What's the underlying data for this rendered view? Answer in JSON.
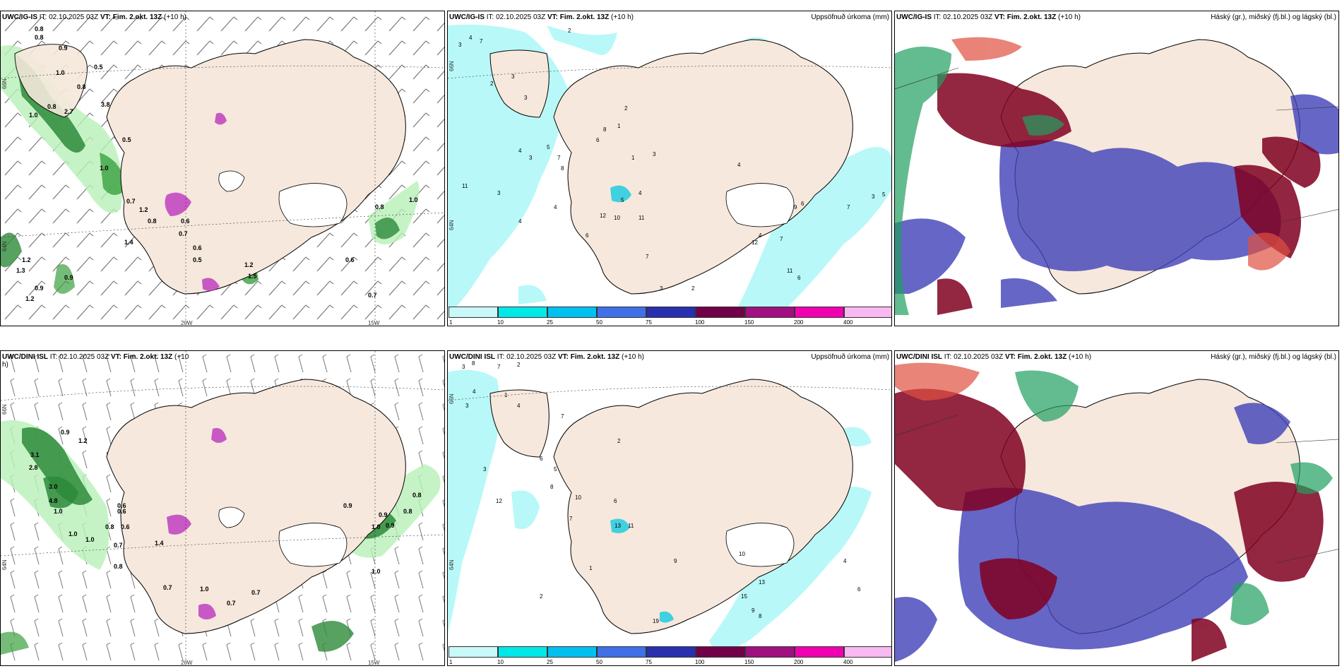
{
  "panels": {
    "tl": {
      "source": "UWC/IG-IS",
      "it": "IT: 02.10.2025 03Z",
      "vt": "VT: Fim. 2.okt. 13Z",
      "lead": "(+10 h)",
      "right": ""
    },
    "tm": {
      "source": "UWC/IG-IS",
      "it": "IT: 02.10.2025 03Z",
      "vt": "VT: Fim. 2.okt. 13Z",
      "lead": "(+10 h)",
      "right": "Uppsöfnuð úrkoma (mm)"
    },
    "tr": {
      "source": "UWC/IG-IS",
      "it": "IT: 02.10.2025 03Z",
      "vt": "VT: Fim. 2.okt. 13Z",
      "lead": "(+10 h)",
      "right": "Háský (gr.), miðský (fj.bl.) og lágský (bl.)"
    },
    "bl": {
      "source": "UWC/DINI ISL",
      "it": "IT: 02.10.2025 03Z",
      "vt": "VT: Fim. 2.okt. 13Z",
      "lead": "(+10",
      "lead2": "h)",
      "right": ""
    },
    "bm": {
      "source": "UWC/DINI ISL",
      "it": "IT: 02.10.2025 03Z",
      "vt": "VT: Fim. 2.okt. 13Z",
      "lead": "(+10 h)",
      "right": "Uppsöfnuð úrkoma (mm)"
    },
    "br": {
      "source": "UWC/DINI ISL",
      "it": "IT: 02.10.2025 03Z",
      "vt": "VT: Fim. 2.okt. 13Z",
      "lead": "(+10 h)",
      "right": "Háský (gr.), miðský (fj.bl.) og lágský (bl.)"
    }
  },
  "axis_labels": {
    "lon_20w": "20W",
    "lon_15w": "15W",
    "lat_66n": "66N",
    "lat_64n": "64N"
  },
  "colorbar": {
    "labels": [
      "1",
      "10",
      "25",
      "50",
      "75",
      "100",
      "150",
      "200",
      "400"
    ],
    "colors": [
      "#c8f8f8",
      "#00e8e8",
      "#00c0f0",
      "#4070e8",
      "#2830b0",
      "#700048",
      "#a01080",
      "#f000b0",
      "#f8b8f0"
    ]
  },
  "tl_values": [
    "0.8",
    "0.8",
    "0.9",
    "1.0",
    "0.5",
    "0.8",
    "1.0",
    "0.8",
    "2.7",
    "3.8",
    "0.5",
    "1.0",
    "0.7",
    "1.2",
    "0.8",
    "0.6",
    "0.7",
    "0.6",
    "0.5",
    "1.4",
    "1.2",
    "1.3",
    "0.9",
    "1.2",
    "0.9",
    "1.0",
    "0.8",
    "0.6",
    "0.7",
    "1.2",
    "1.5"
  ],
  "bl_values": [
    "0.9",
    "1.2",
    "3.1",
    "2.8",
    "3.0",
    "4.8",
    "1.0",
    "0.6",
    "0.6",
    "1.0",
    "0.8",
    "0.6",
    "1.4",
    "0.7",
    "1.0",
    "0.7",
    "0.8",
    "1.0",
    "0.7",
    "0.9",
    "1.0",
    "0.8",
    "0.8",
    "0.9",
    "0.9",
    "0.7",
    "1.0"
  ],
  "tm_values": [
    "3",
    "4",
    "7",
    "2",
    "3",
    "3",
    "4",
    "3",
    "5",
    "7",
    "8",
    "11",
    "3",
    "6",
    "1",
    "8",
    "2",
    "2",
    "1",
    "3",
    "4",
    "5",
    "12",
    "10",
    "11",
    "4",
    "6",
    "7",
    "3",
    "2",
    "4",
    "6",
    "9",
    "12",
    "4",
    "7",
    "6",
    "11",
    "7",
    "3",
    "5",
    "4",
    "1"
  ],
  "bm_values": [
    "3",
    "8",
    "7",
    "2",
    "4",
    "3",
    "1",
    "4",
    "7",
    "3",
    "12",
    "6",
    "5",
    "8",
    "10",
    "7",
    "6",
    "13",
    "11",
    "2",
    "9",
    "10",
    "15",
    "9",
    "8",
    "13",
    "19",
    "1",
    "2",
    "4",
    "6"
  ]
}
